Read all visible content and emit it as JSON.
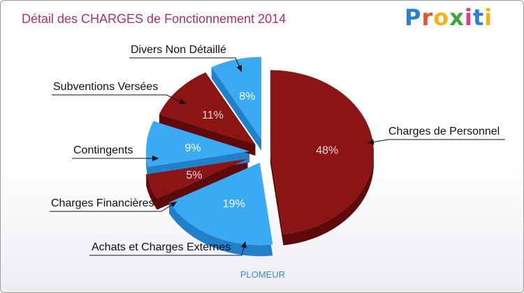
{
  "brand": {
    "text": "Proxiti",
    "letter_colors": [
      "#2a7fcf",
      "#e8532b",
      "#f2b315",
      "#3aa63a",
      "#e03a8a",
      "#2a7fcf",
      "#f2b315"
    ]
  },
  "footer": {
    "commune": "PLOMEUR"
  },
  "chart_data": {
    "type": "pie",
    "title": "Détail des CHARGES de Fonctionnement 2014",
    "slices": [
      {
        "label": "Charges de Personnel",
        "percent_text": "48%",
        "value": 48,
        "color": "#8b1414",
        "side_color": "#5e0a0a",
        "text_color": "#f0d8d8"
      },
      {
        "label": "Achats et Charges Externes",
        "percent_text": "19%",
        "value": 19,
        "color": "#3aaaf4",
        "side_color": "#2280c8",
        "text_color": "#ffffff"
      },
      {
        "label": "Charges Financières",
        "percent_text": "5%",
        "value": 5,
        "color": "#8b1414",
        "side_color": "#5e0a0a",
        "text_color": "#f0d8d8"
      },
      {
        "label": "Contingents",
        "percent_text": "9%",
        "value": 9,
        "color": "#3aaaf4",
        "side_color": "#2280c8",
        "text_color": "#ffffff"
      },
      {
        "label": "Subventions Versées",
        "percent_text": "11%",
        "value": 11,
        "color": "#8b1414",
        "side_color": "#5e0a0a",
        "text_color": "#f0d8d8"
      },
      {
        "label": "Divers Non Détaillé",
        "percent_text": "8%",
        "value": 8,
        "color": "#3aaaf4",
        "side_color": "#2280c8",
        "text_color": "#ffffff"
      }
    ]
  }
}
